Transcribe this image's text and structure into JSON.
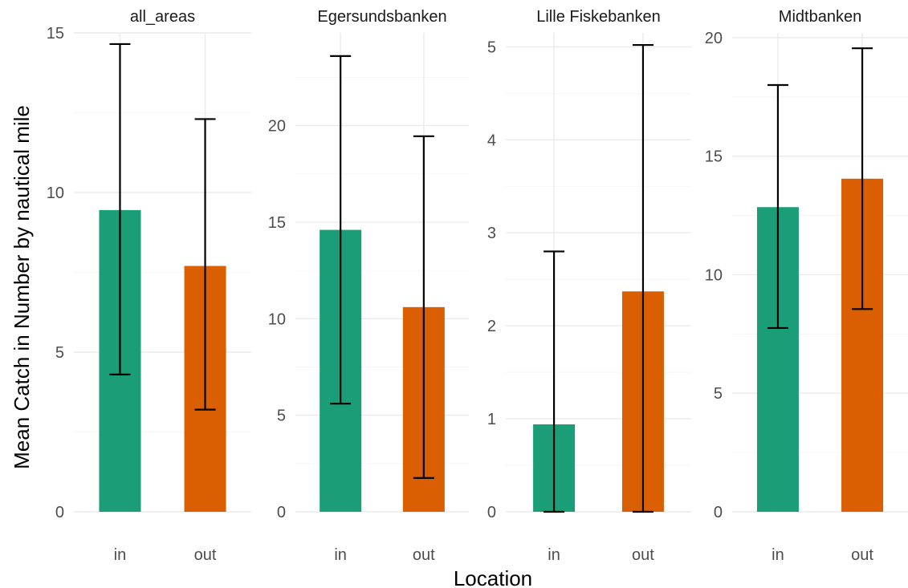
{
  "chart_data": {
    "type": "bar",
    "xlabel": "Location",
    "ylabel": "Mean Catch in Number by nautical mile",
    "categories": [
      "in",
      "out"
    ],
    "colors": {
      "in": "#1b9e77",
      "out": "#d95f02"
    },
    "grid": true,
    "legend": "none",
    "facets": [
      {
        "title": "all_areas",
        "ylim": [
          0,
          15
        ],
        "yticks": [
          0,
          5,
          10,
          15
        ],
        "values": [
          9.45,
          7.7
        ],
        "error_low": [
          4.3,
          3.2
        ],
        "error_high": [
          14.65,
          12.3
        ]
      },
      {
        "title": "Egersundsbanken",
        "ylim": [
          0,
          24.8
        ],
        "yticks": [
          0,
          5,
          10,
          15,
          20
        ],
        "values": [
          14.6,
          10.6
        ],
        "error_low": [
          5.6,
          1.75
        ],
        "error_high": [
          23.6,
          19.45
        ]
      },
      {
        "title": "Lille Fiskebanken",
        "ylim": [
          0,
          5.15
        ],
        "yticks": [
          0,
          1,
          2,
          3,
          4,
          5
        ],
        "values": [
          0.94,
          2.37
        ],
        "error_low": [
          0,
          0
        ],
        "error_high": [
          2.8,
          5.02
        ]
      },
      {
        "title": "Midtbanken",
        "ylim": [
          0,
          20.2
        ],
        "yticks": [
          0,
          5,
          10,
          15,
          20
        ],
        "values": [
          12.85,
          14.05
        ],
        "error_low": [
          7.75,
          8.55
        ],
        "error_high": [
          18.0,
          19.55
        ]
      }
    ]
  }
}
